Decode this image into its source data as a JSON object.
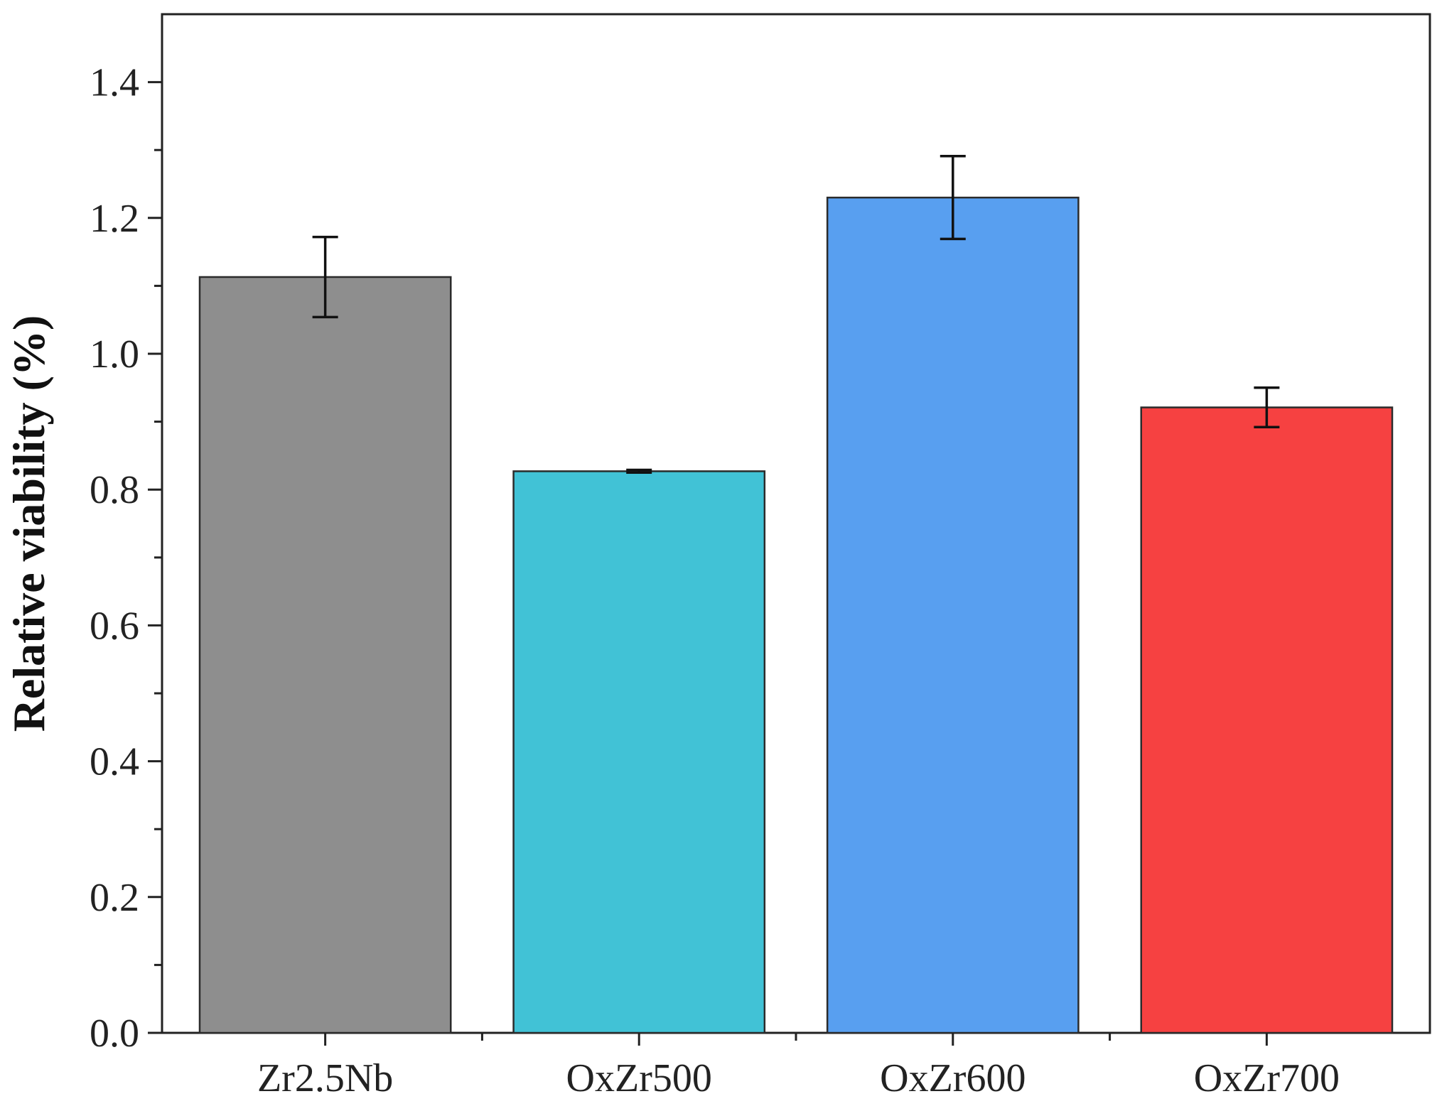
{
  "chart_data": {
    "type": "bar",
    "title": "",
    "xlabel": "",
    "ylabel": "Relative viability (%)",
    "categories": [
      "Zr2.5Nb",
      "OxZr500",
      "OxZr600",
      "OxZr700"
    ],
    "values": [
      1.113,
      0.827,
      1.23,
      0.921
    ],
    "errors": [
      0.059,
      0.002,
      0.061,
      0.029
    ],
    "colors": [
      "#8e8e8e",
      "#41c2d6",
      "#589ff0",
      "#f64141"
    ],
    "ylim": [
      0,
      1.5
    ],
    "yticks": [
      0.0,
      0.2,
      0.4,
      0.6,
      0.8,
      1.0,
      1.2,
      1.4
    ],
    "ytick_labels": [
      "0.0",
      "0.2",
      "0.4",
      "0.6",
      "0.8",
      "1.0",
      "1.2",
      "1.4"
    ],
    "grid": false,
    "legend": "none"
  }
}
